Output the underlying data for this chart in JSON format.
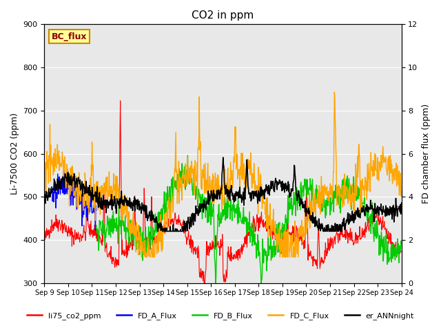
{
  "title": "CO2 in ppm",
  "ylabel_left": "Li-7500 CO2 (ppm)",
  "ylabel_right": "FD chamber flux (ppm)",
  "ylim_left": [
    300,
    900
  ],
  "ylim_right": [
    0,
    12
  ],
  "bg_color": "#e8e8e8",
  "legend_items": [
    "li75_co2_ppm",
    "FD_A_Flux",
    "FD_B_Flux",
    "FD_C_Flux",
    "er_ANNnight"
  ],
  "legend_colors": [
    "#ff0000",
    "#0000ff",
    "#00cc00",
    "#ffa500",
    "#000000"
  ],
  "box_label": "BC_flux",
  "box_color": "#ffff99",
  "box_border": "#cc8800",
  "n_points": 960,
  "xtick_labels": [
    "Sep 9",
    "Sep 10",
    "Sep 11",
    "Sep 12",
    "Sep 13",
    "Sep 14",
    "Sep 15",
    "Sep 16",
    "Sep 17",
    "Sep 18",
    "Sep 19",
    "Sep 20",
    "Sep 21",
    "Sep 22",
    "Sep 23",
    "Sep 24"
  ],
  "xtick_positions": [
    0,
    1,
    2,
    3,
    4,
    5,
    6,
    7,
    8,
    9,
    10,
    11,
    12,
    13,
    14,
    15
  ]
}
